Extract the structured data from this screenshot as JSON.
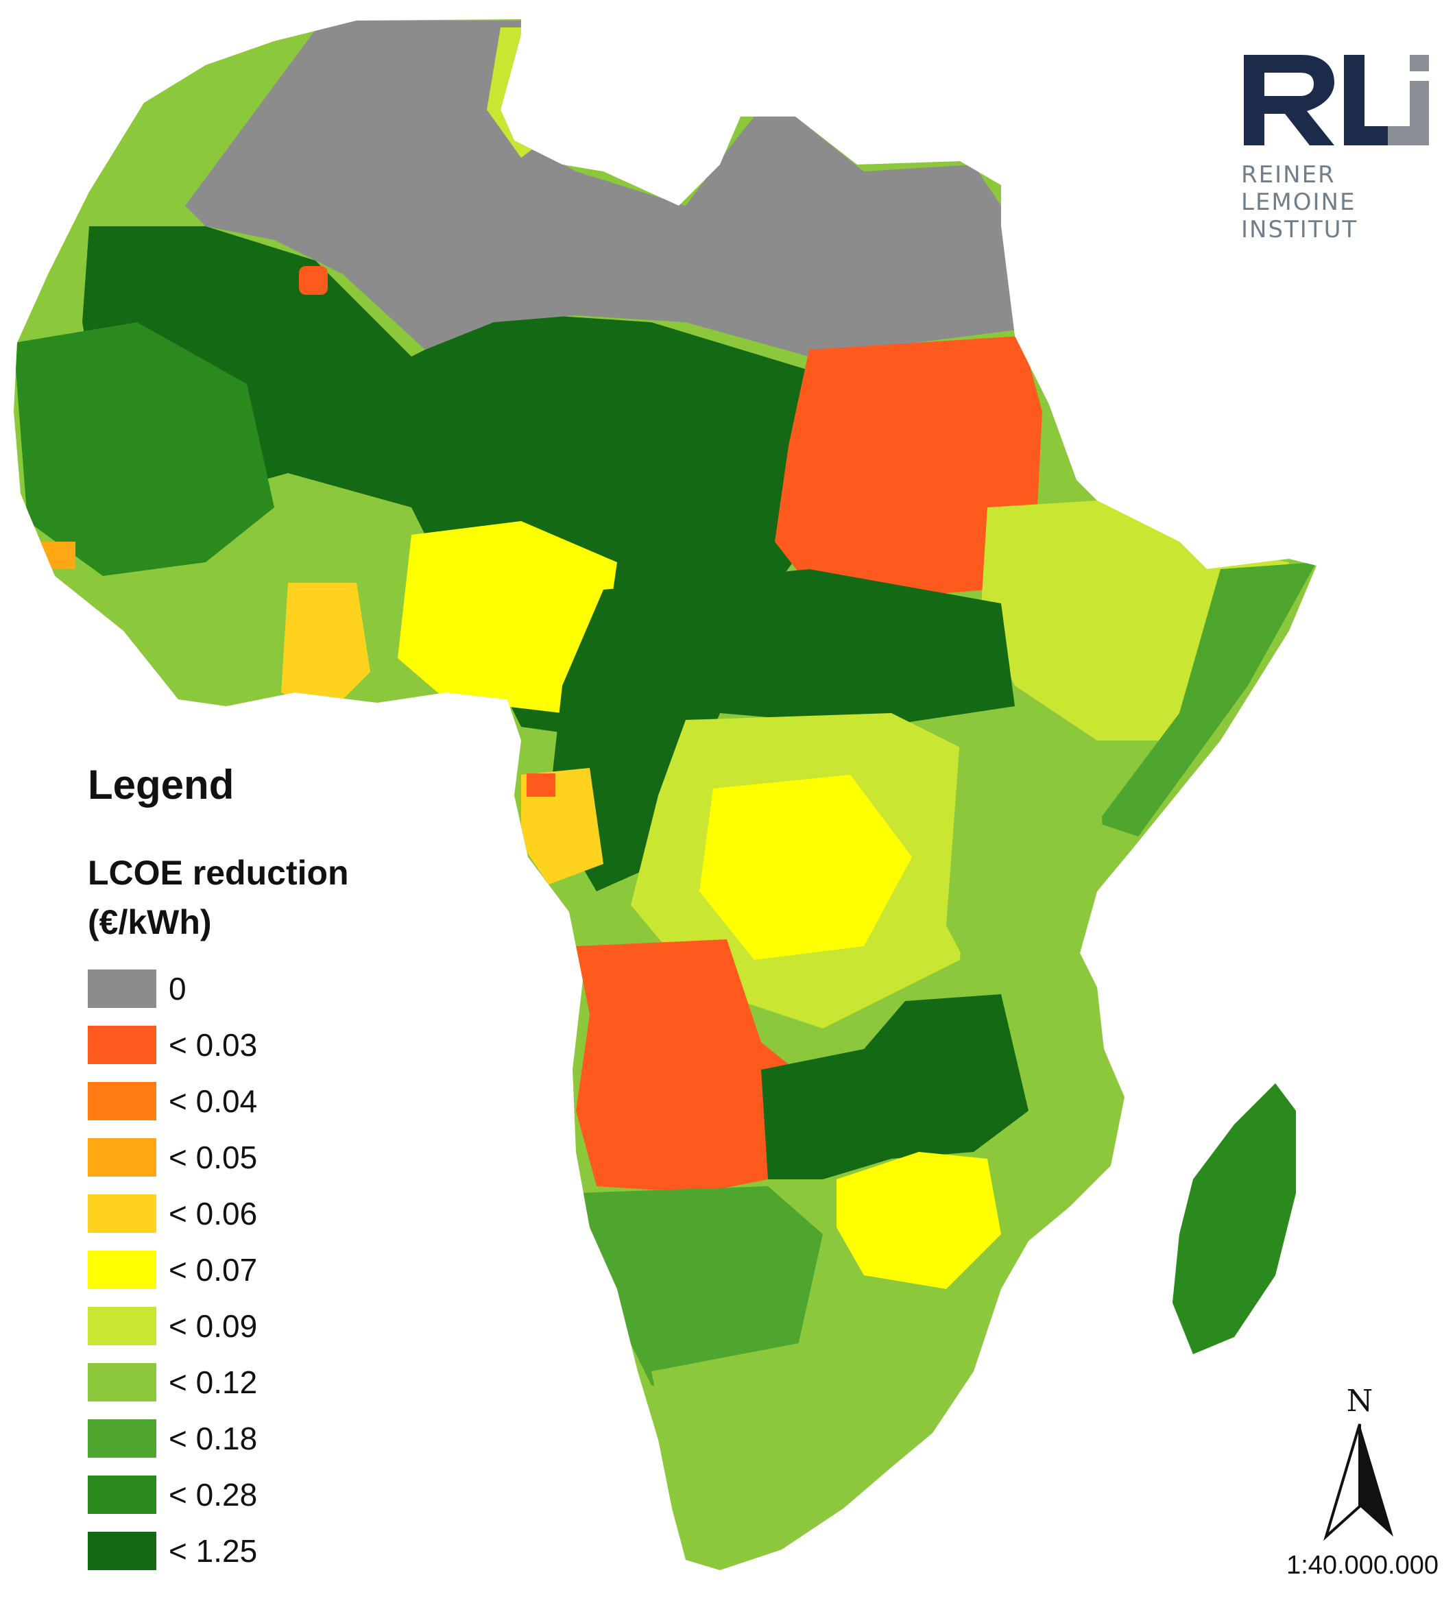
{
  "legend": {
    "title": "Legend",
    "subtitle": "LCOE reduction (€/kWh)",
    "classes": [
      {
        "label": "0",
        "color": "#8c8c8c"
      },
      {
        "label": "< 0.03",
        "color": "#ff5a1e"
      },
      {
        "label": "< 0.04",
        "color": "#ff7b14"
      },
      {
        "label": "< 0.05",
        "color": "#ffa814"
      },
      {
        "label": "< 0.06",
        "color": "#ffd21e"
      },
      {
        "label": "< 0.07",
        "color": "#ffff00"
      },
      {
        "label": "< 0.09",
        "color": "#c8e632"
      },
      {
        "label": "< 0.12",
        "color": "#8cc83c"
      },
      {
        "label": "< 0.18",
        "color": "#4ea62e"
      },
      {
        "label": "< 0.28",
        "color": "#2a8a1e"
      },
      {
        "label": "< 1.25",
        "color": "#146a14"
      }
    ]
  },
  "logo": {
    "letters": "RLi",
    "name_line1": "REINER LEMOINE",
    "name_line2": "INSTITUT",
    "navy": "#1c2b4a",
    "grey": "#8a8f96"
  },
  "north_arrow": {
    "letter": "N"
  },
  "scale": {
    "text": "1:40.000.000"
  }
}
